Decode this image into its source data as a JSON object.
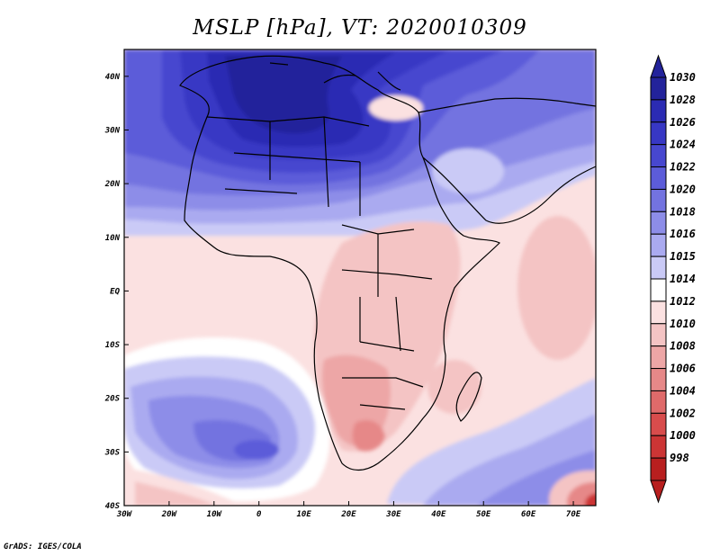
{
  "title": "MSLP [hPa], VT: 2020010309",
  "footer": "GrADS: IGES/COLA",
  "map": {
    "lon_range": [
      -30,
      75
    ],
    "lat_range": [
      -40,
      45
    ],
    "lon_ticks": [
      {
        "value": -30,
        "label": "30W"
      },
      {
        "value": -20,
        "label": "20W"
      },
      {
        "value": -10,
        "label": "10W"
      },
      {
        "value": 0,
        "label": "0"
      },
      {
        "value": 10,
        "label": "10E"
      },
      {
        "value": 20,
        "label": "20E"
      },
      {
        "value": 30,
        "label": "30E"
      },
      {
        "value": 40,
        "label": "40E"
      },
      {
        "value": 50,
        "label": "50E"
      },
      {
        "value": 60,
        "label": "60E"
      },
      {
        "value": 70,
        "label": "70E"
      }
    ],
    "lat_ticks": [
      {
        "value": 40,
        "label": "40N"
      },
      {
        "value": 30,
        "label": "30N"
      },
      {
        "value": 20,
        "label": "20N"
      },
      {
        "value": 10,
        "label": "10N"
      },
      {
        "value": 0,
        "label": "EQ"
      },
      {
        "value": -10,
        "label": "10S"
      },
      {
        "value": -20,
        "label": "20S"
      },
      {
        "value": -30,
        "label": "30S"
      },
      {
        "value": -40,
        "label": "40S"
      }
    ]
  },
  "colorbar": {
    "levels": [
      {
        "label": "1030",
        "color": "#23239b"
      },
      {
        "label": "1028",
        "color": "#2b2bb3"
      },
      {
        "label": "1026",
        "color": "#3737c4"
      },
      {
        "label": "1024",
        "color": "#4747cf"
      },
      {
        "label": "1022",
        "color": "#5c5cd9"
      },
      {
        "label": "1020",
        "color": "#7373e0"
      },
      {
        "label": "1018",
        "color": "#8d8de8"
      },
      {
        "label": "1016",
        "color": "#aaaaf0"
      },
      {
        "label": "1015",
        "color": "#cacaf6"
      },
      {
        "label": "1014",
        "color": "#ffffff"
      },
      {
        "label": "1012",
        "color": "#fbe1e1"
      },
      {
        "label": "1010",
        "color": "#f4c4c4"
      },
      {
        "label": "1008",
        "color": "#eda6a6"
      },
      {
        "label": "1006",
        "color": "#e68888"
      },
      {
        "label": "1004",
        "color": "#df6a6a"
      },
      {
        "label": "1002",
        "color": "#d84c4c"
      },
      {
        "label": "1000",
        "color": "#cc3535"
      },
      {
        "label": "998",
        "color": "#b81f1f"
      }
    ]
  }
}
